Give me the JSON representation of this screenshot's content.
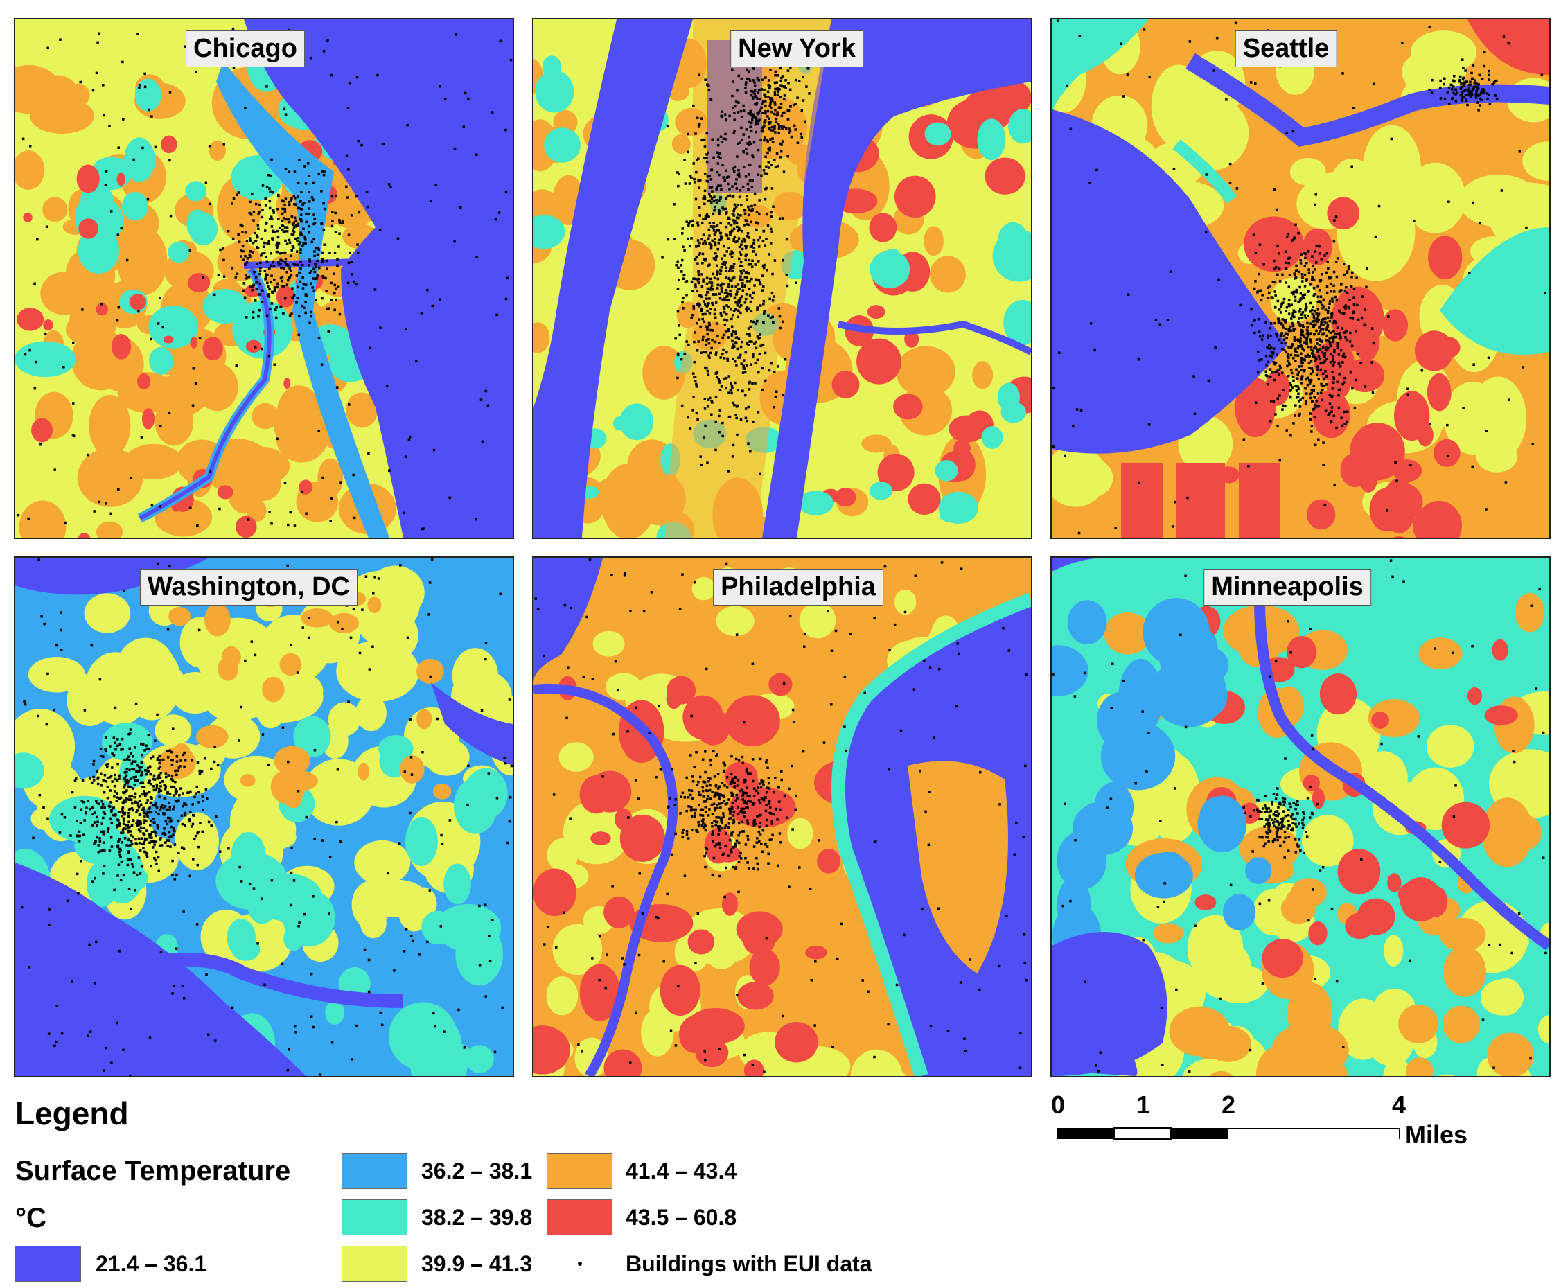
{
  "colors": {
    "water": "#4f4ff5",
    "cool": "#3aa8f0",
    "mild": "#45e8c8",
    "warm": "#e8f55a",
    "hot": "#f5a833",
    "hottest": "#f04a45",
    "building": "#000000"
  },
  "panels": [
    {
      "name": "Chicago"
    },
    {
      "name": "New York"
    },
    {
      "name": "Seattle"
    },
    {
      "name": "Washington, DC"
    },
    {
      "name": "Philadelphia"
    },
    {
      "name": "Minneapolis"
    }
  ],
  "legend": {
    "title": "Legend",
    "subtitle": "Surface Temperature",
    "unit": "°C",
    "classes": [
      {
        "range": "21.4 – 36.1",
        "color_key": "water"
      },
      {
        "range": "36.2 – 38.1",
        "color_key": "cool"
      },
      {
        "range": "38.2 – 39.8",
        "color_key": "mild"
      },
      {
        "range": "39.9 – 41.3",
        "color_key": "warm"
      },
      {
        "range": "41.4 – 43.4",
        "color_key": "hot"
      },
      {
        "range": "43.5 – 60.8",
        "color_key": "hottest"
      }
    ],
    "buildings_label": "Buildings with EUI data"
  },
  "scale_bar": {
    "ticks": [
      "0",
      "1",
      "2",
      "4"
    ],
    "unit": "Miles"
  }
}
